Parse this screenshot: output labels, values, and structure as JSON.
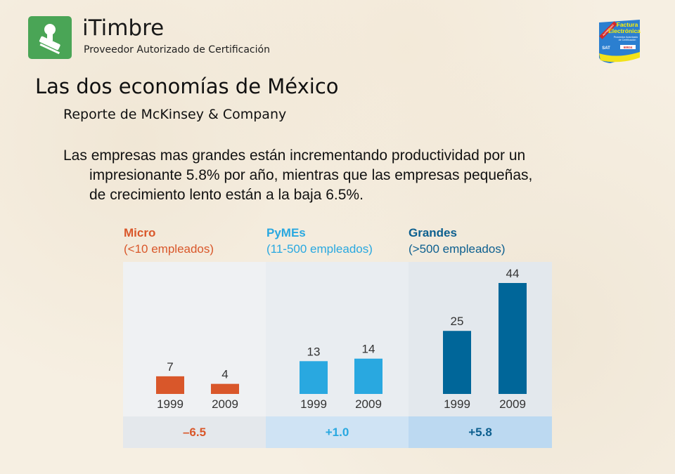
{
  "header": {
    "brand_name": "iTimbre",
    "brand_tagline": "Proveedor Autorizado de Certificación",
    "logo_icon": "stamp-icon",
    "badge": {
      "ribbon": "AUTORIZADO",
      "title_line1": "Factura",
      "title_line2": "Electrónica",
      "caption_line1": "Proveedor Autorizado",
      "caption_line2": "de Certificación",
      "org": "SAT",
      "number": "68934"
    }
  },
  "slide": {
    "title": "Las dos economías de México",
    "subtitle": "Reporte de McKinsey & Company",
    "body_line1": "Las empresas mas grandes están incrementando productividad por un",
    "body_line2": "impresionante 5.8% por año, mientras que las empresas pequeñas,",
    "body_line3": "de crecimiento lento están a la baja 6.5%."
  },
  "colors": {
    "micro": "#d9572a",
    "pymes": "#29a8e0",
    "grandes": "#006699",
    "panel_micro": "#eff1f3",
    "panel_pymes": "#e9edf1",
    "panel_grandes": "#e3e8ed",
    "strip_micro": "#e4e8ec",
    "strip_pymes": "#cfe3f4",
    "strip_grandes": "#bcd9f1"
  },
  "chart_data": {
    "type": "bar",
    "title": "",
    "xlabel": "",
    "ylabel": "",
    "ylim": [
      0,
      48
    ],
    "grid": false,
    "groups": [
      {
        "name": "Micro",
        "subtitle": "(<10 empleados)",
        "categories": [
          "1999",
          "2009"
        ],
        "values": [
          7,
          4
        ],
        "change": "–6.5"
      },
      {
        "name": "PyMEs",
        "subtitle": "(11-500 empleados)",
        "categories": [
          "1999",
          "2009"
        ],
        "values": [
          13,
          14
        ],
        "change": "+1.0"
      },
      {
        "name": "Grandes",
        "subtitle": "(>500 empleados)",
        "categories": [
          "1999",
          "2009"
        ],
        "values": [
          25,
          44
        ],
        "change": "+5.8"
      }
    ]
  }
}
